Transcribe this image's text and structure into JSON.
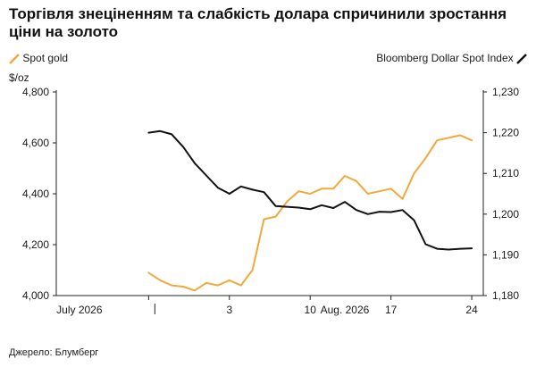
{
  "header": {
    "title": "Торгівля знеціненням та слабкість долара спричинили зростання ціни на золото"
  },
  "footer": {
    "source": "Джерело: Блумберг"
  },
  "colors": {
    "gold": "#f2a93b",
    "dollar": "#111111",
    "axis": "#222222"
  },
  "chart_data": {
    "type": "line",
    "title": "Торгівля знеціненням та слабкість долара спричинили зростання ціни на золото",
    "y_left_unit": "$/oz",
    "y_left_ticks": [
      "4,800",
      "4,600",
      "4,400",
      "4,200",
      "4,000"
    ],
    "y_left_range": [
      4000,
      4800
    ],
    "y_right_ticks": [
      "1,230",
      "1,220",
      "1,210",
      "1,200",
      "1,190",
      "1,180"
    ],
    "y_right_range": [
      1180,
      1230
    ],
    "x_ticks": [
      "July 2026",
      "3",
      "10",
      "Aug. 2026",
      "17",
      "24"
    ],
    "grid": false,
    "legend_placement": "top",
    "series": [
      {
        "name": "Spot gold",
        "axis": "left",
        "color": "#f2a93b",
        "points": [
          [
            "2026-07-27",
            4090
          ],
          [
            "2026-07-28",
            4060
          ],
          [
            "2026-07-29",
            4040
          ],
          [
            "2026-07-30",
            4035
          ],
          [
            "2026-07-31",
            4020
          ],
          [
            "2026-08-01",
            4050
          ],
          [
            "2026-08-02",
            4040
          ],
          [
            "2026-08-03",
            4060
          ],
          [
            "2026-08-04",
            4040
          ],
          [
            "2026-08-05",
            4100
          ],
          [
            "2026-08-06",
            4300
          ],
          [
            "2026-08-07",
            4310
          ],
          [
            "2026-08-08",
            4370
          ],
          [
            "2026-08-09",
            4410
          ],
          [
            "2026-08-10",
            4400
          ],
          [
            "2026-08-11",
            4420
          ],
          [
            "2026-08-12",
            4420
          ],
          [
            "2026-08-13",
            4470
          ],
          [
            "2026-08-14",
            4450
          ],
          [
            "2026-08-15",
            4400
          ],
          [
            "2026-08-16",
            4410
          ],
          [
            "2026-08-17",
            4420
          ],
          [
            "2026-08-18",
            4380
          ],
          [
            "2026-08-19",
            4480
          ],
          [
            "2026-08-20",
            4540
          ],
          [
            "2026-08-21",
            4610
          ],
          [
            "2026-08-22",
            4620
          ],
          [
            "2026-08-23",
            4630
          ],
          [
            "2026-08-24",
            4610
          ]
        ]
      },
      {
        "name": "Bloomberg Dollar Spot Index",
        "axis": "right",
        "color": "#111111",
        "points": [
          [
            "2026-07-27",
            1220.0
          ],
          [
            "2026-07-28",
            1220.4
          ],
          [
            "2026-07-29",
            1219.6
          ],
          [
            "2026-07-30",
            1216.5
          ],
          [
            "2026-07-31",
            1212.5
          ],
          [
            "2026-08-01",
            1209.5
          ],
          [
            "2026-08-02",
            1206.5
          ],
          [
            "2026-08-03",
            1205.0
          ],
          [
            "2026-08-04",
            1206.8
          ],
          [
            "2026-08-05",
            1206.0
          ],
          [
            "2026-08-06",
            1205.4
          ],
          [
            "2026-08-07",
            1202.0
          ],
          [
            "2026-08-08",
            1201.8
          ],
          [
            "2026-08-09",
            1201.6
          ],
          [
            "2026-08-10",
            1201.2
          ],
          [
            "2026-08-11",
            1202.2
          ],
          [
            "2026-08-12",
            1201.5
          ],
          [
            "2026-08-13",
            1203.0
          ],
          [
            "2026-08-14",
            1201.0
          ],
          [
            "2026-08-15",
            1200.0
          ],
          [
            "2026-08-16",
            1200.6
          ],
          [
            "2026-08-17",
            1200.5
          ],
          [
            "2026-08-18",
            1201.0
          ],
          [
            "2026-08-19",
            1198.5
          ],
          [
            "2026-08-20",
            1192.6
          ],
          [
            "2026-08-21",
            1191.5
          ],
          [
            "2026-08-22",
            1191.3
          ],
          [
            "2026-08-23",
            1191.5
          ],
          [
            "2026-08-24",
            1191.6
          ]
        ]
      }
    ]
  }
}
